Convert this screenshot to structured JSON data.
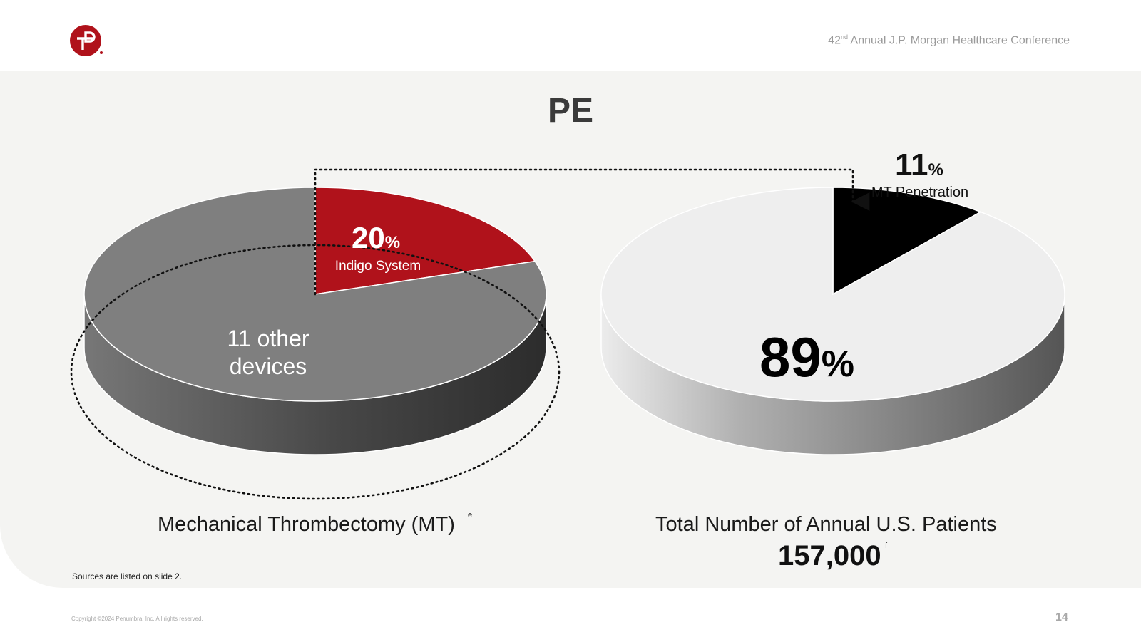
{
  "header": {
    "conference_prefix": "42",
    "conference_sup": "nd",
    "conference_rest": " Annual J.P. Morgan Healthcare Conference"
  },
  "slide": {
    "title": "PE",
    "sources": "Sources are listed on slide 2.",
    "copyright": "Copyright ©2024 Penumbra, Inc. All rights reserved.",
    "page_number": "14"
  },
  "chart_data": [
    {
      "type": "pie",
      "slices": [
        {
          "label": "Indigo System",
          "value": 20,
          "unit": "%",
          "color": "#b0121b"
        },
        {
          "label": "11 other devices",
          "value": 80,
          "color": "#7f7f7f"
        }
      ],
      "caption": "Mechanical Thrombectomy (MT)",
      "caption_footnote": "e"
    },
    {
      "type": "pie",
      "slices": [
        {
          "label": "MT Penetration",
          "value": 11,
          "unit": "%",
          "color": "#000000"
        },
        {
          "label": "",
          "value": 89,
          "unit": "%",
          "color": "#eeeeee"
        }
      ],
      "caption": "Total Number of Annual U.S. Patients",
      "total": "157,000",
      "total_footnote": "f"
    }
  ],
  "colors": {
    "accent": "#b0121b",
    "panel": "#f4f4f2",
    "dark": "#333333"
  }
}
